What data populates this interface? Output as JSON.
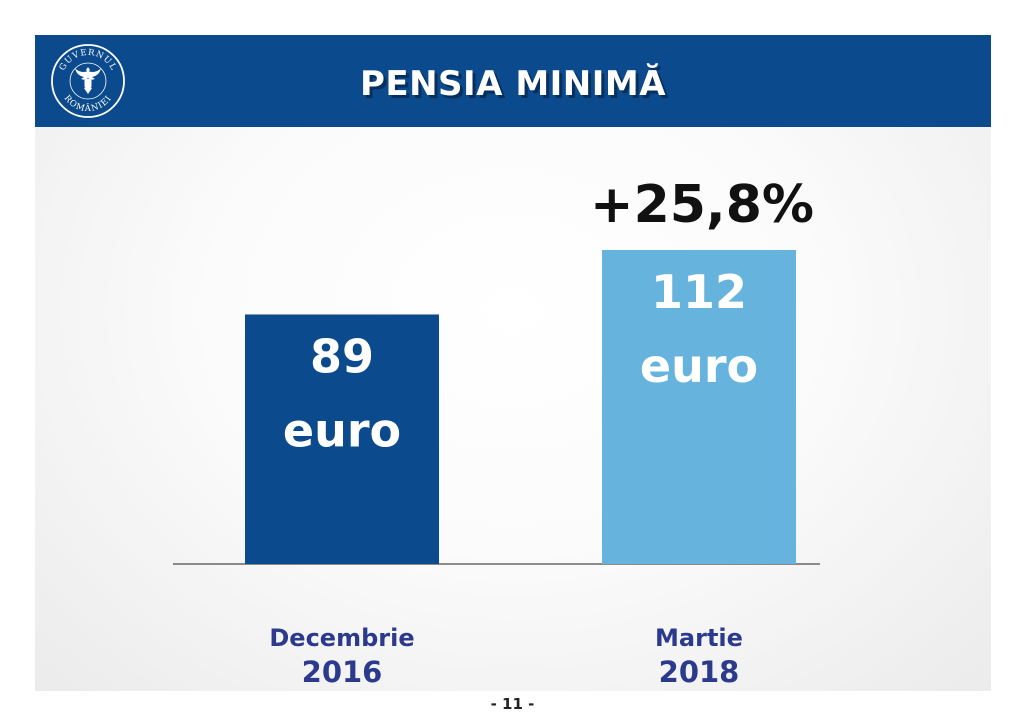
{
  "header": {
    "title": "PENSIA MINIMĂ",
    "logo_text_top": "GUVERNUL",
    "logo_text_bottom": "ROMÂNIEI"
  },
  "footer": {
    "page_number": "- 11 -"
  },
  "colors": {
    "header_bg": "#0b4a8d",
    "bar_2016": "#0b4a8d",
    "bar_2018": "#66b3dd",
    "label_text": "#2b3a8c"
  },
  "chart_data": {
    "type": "bar",
    "categories": [
      "Decembrie 2016",
      "Martie 2018"
    ],
    "category_lines": [
      [
        "Decembrie",
        "2016"
      ],
      [
        "Martie",
        "2018"
      ]
    ],
    "values": [
      89,
      112
    ],
    "data_labels": [
      [
        "89",
        "euro"
      ],
      [
        "112",
        "euro"
      ]
    ],
    "annotation": "+25,8%",
    "unit": "euro",
    "title": "",
    "xlabel": "",
    "ylabel": "",
    "ylim": [
      0,
      112
    ],
    "grid": false,
    "legend": "none"
  }
}
